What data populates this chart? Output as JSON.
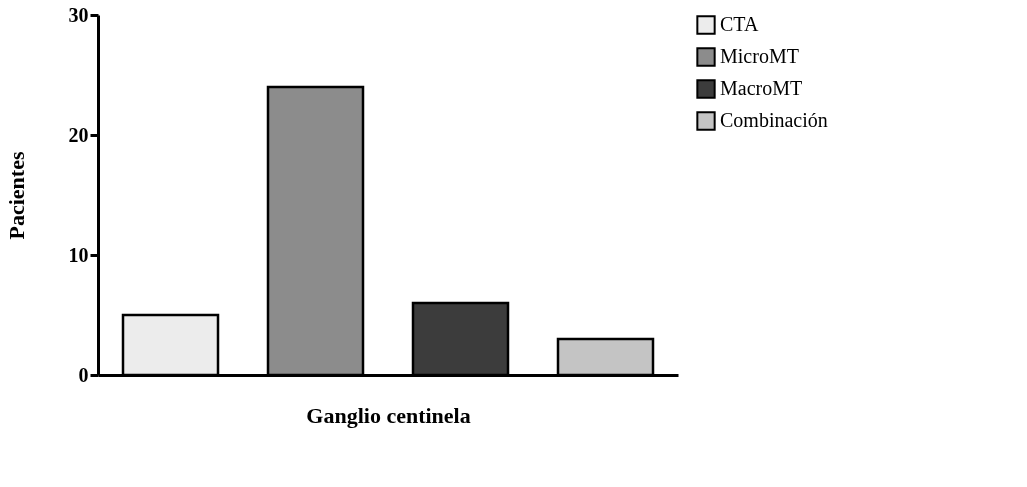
{
  "chart_data": {
    "type": "bar",
    "xlabel": "Ganglio centinela",
    "ylabel": "Pacientes",
    "categories": [
      null,
      null,
      null,
      null
    ],
    "series": [
      {
        "name": "CTA",
        "color": "#ececec",
        "values": [
          5,
          null,
          null,
          null
        ]
      },
      {
        "name": "MicroMT",
        "color": "#8c8c8c",
        "values": [
          null,
          24,
          null,
          null
        ]
      },
      {
        "name": "MacroMT",
        "color": "#3c3c3c",
        "values": [
          null,
          null,
          6,
          null
        ]
      },
      {
        "name": "Combinación",
        "color": "#c4c4c4",
        "values": [
          null,
          null,
          null,
          3
        ]
      }
    ],
    "ylim": [
      0,
      30
    ],
    "yticks": [
      0,
      10,
      20,
      30
    ],
    "grid": false,
    "legend": "top right",
    "tick_labels": "y"
  }
}
